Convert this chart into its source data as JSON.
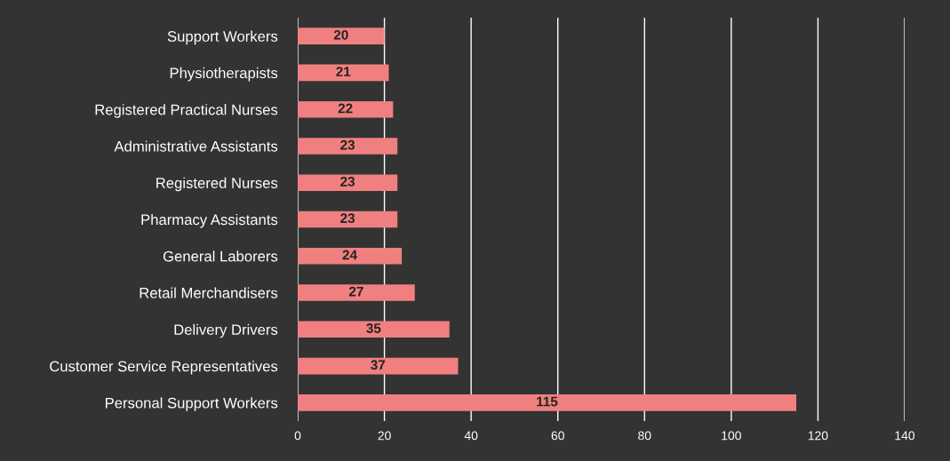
{
  "chart_data": {
    "type": "bar",
    "orientation": "horizontal",
    "categories": [
      "Support Workers",
      "Physiotherapists",
      "Registered Practical Nurses",
      "Administrative Assistants",
      "Registered Nurses",
      "Pharmacy Assistants",
      "General Laborers",
      "Retail Merchandisers",
      "Delivery Drivers",
      "Customer Service Representatives",
      "Personal Support Workers"
    ],
    "values": [
      20,
      21,
      22,
      23,
      23,
      23,
      24,
      27,
      35,
      37,
      115
    ],
    "color": "#f08080",
    "xlim": [
      0,
      140
    ],
    "xticks": [
      0,
      20,
      40,
      60,
      80,
      100,
      120,
      140
    ],
    "grid": "x",
    "data_labels": true,
    "legend": false
  }
}
